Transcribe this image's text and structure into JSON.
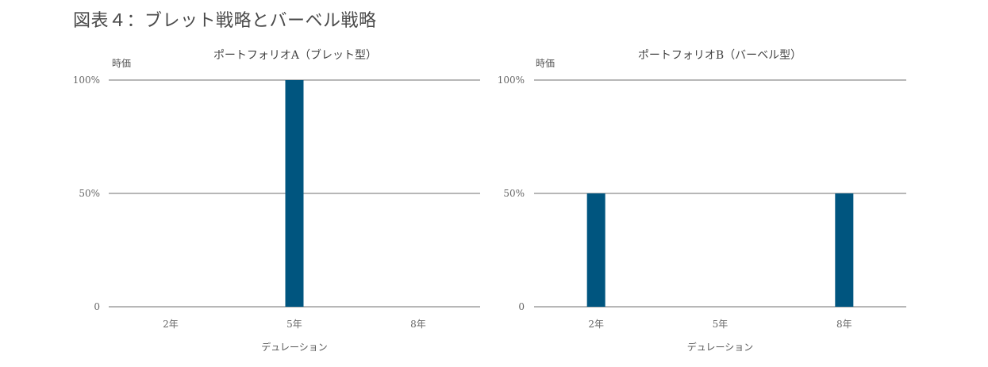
{
  "figure_title": "図表４：ブレット戦略とバーベル戦略",
  "chart_data": [
    {
      "type": "bar",
      "title": "ポートフォリオA（ブレット型）",
      "ylabel": "時価",
      "xlabel": "デュレーション",
      "categories": [
        "2年",
        "5年",
        "8年"
      ],
      "values": [
        0,
        100,
        0
      ],
      "unit": "%",
      "ylim": [
        0,
        100
      ],
      "yticks": [
        0,
        50,
        100
      ],
      "ytick_labels": [
        "0",
        "50%",
        "100%"
      ],
      "bar_color": "#00557f",
      "grid": true
    },
    {
      "type": "bar",
      "title": "ポートフォリオB（バーベル型）",
      "ylabel": "時価",
      "xlabel": "デュレーション",
      "categories": [
        "2年",
        "5年",
        "8年"
      ],
      "values": [
        50,
        0,
        50
      ],
      "unit": "%",
      "ylim": [
        0,
        100
      ],
      "yticks": [
        0,
        50,
        100
      ],
      "ytick_labels": [
        "0",
        "50%",
        "100%"
      ],
      "bar_color": "#00557f",
      "grid": true
    }
  ]
}
